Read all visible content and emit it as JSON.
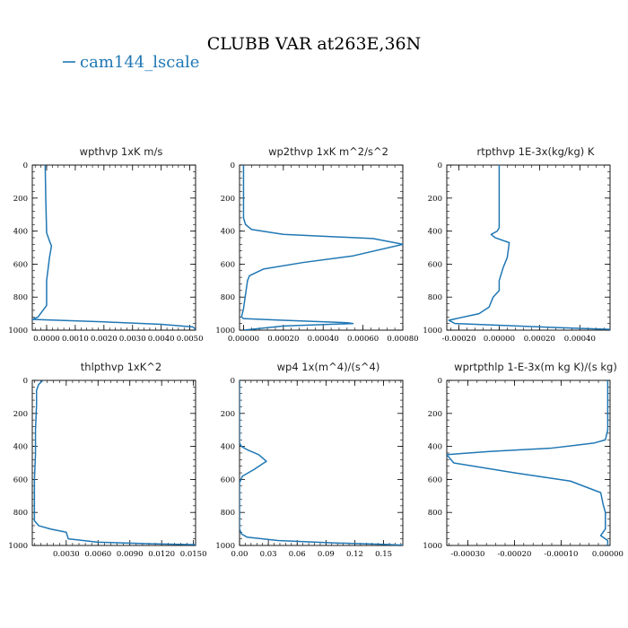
{
  "figure": {
    "title": "CLUBB VAR at263E,36N",
    "legend": {
      "label": "cam144_lscale",
      "color": "#1f77b4"
    }
  },
  "chart_data": [
    {
      "type": "line",
      "title": "wpthvp   1xK m/s",
      "ylim": [
        1000,
        0
      ],
      "xlim": [
        -0.0005,
        0.0052
      ],
      "xticks": [
        0.0,
        0.001,
        0.002,
        0.003,
        0.004,
        0.005
      ],
      "xtick_labels": [
        "0.0000",
        "0.0010",
        "0.0020",
        "0.0030",
        "0.0040",
        "0.0050"
      ],
      "yticks": [
        0,
        200,
        400,
        600,
        800,
        1000
      ],
      "ytick_labels": [
        "0",
        "200",
        "400",
        "600",
        "800",
        "1000"
      ],
      "series": [
        {
          "color": "#1f77b4",
          "x": [
            -5e-05,
            -4e-05,
            -3e-05,
            0.0,
            0.0001,
            0.00017,
            0.0001,
            5e-05,
            0.0,
            0.0,
            0.0,
            -0.0003,
            -0.0005,
            0.002,
            0.004,
            0.0051,
            0.0052
          ],
          "y": [
            0,
            100,
            200,
            410,
            460,
            490,
            560,
            630,
            700,
            800,
            850,
            920,
            935,
            950,
            965,
            980,
            995
          ]
        }
      ]
    },
    {
      "type": "line",
      "title": "wp2thvp   1xK m^2/s^2",
      "ylim": [
        1000,
        0
      ],
      "xlim": [
        -2e-05,
        0.0008
      ],
      "xticks": [
        0.0,
        0.0002,
        0.0004,
        0.0006,
        0.0008
      ],
      "xtick_labels": [
        "0.00000",
        "0.00020",
        "0.00040",
        "0.00060",
        "0.00080"
      ],
      "yticks": [
        0,
        200,
        400,
        600,
        800,
        1000
      ],
      "ytick_labels": [
        "0",
        "200",
        "400",
        "600",
        "800",
        "1000"
      ],
      "series": [
        {
          "color": "#1f77b4",
          "x": [
            0.0,
            0.0,
            1e-05,
            4e-05,
            0.0002,
            0.00065,
            0.0008,
            0.00055,
            0.0003,
            0.0001,
            3e-05,
            2e-05,
            0.0,
            -1e-05,
            0.0,
            0.0002,
            0.00052,
            0.00055,
            0.0002,
            0.0
          ],
          "y": [
            0,
            320,
            360,
            390,
            420,
            445,
            480,
            550,
            590,
            630,
            670,
            700,
            870,
            920,
            930,
            940,
            955,
            960,
            975,
            1000
          ]
        }
      ]
    },
    {
      "type": "line",
      "title": "rtpthvp   1E-3x(kg/kg) K",
      "ylim": [
        1000,
        0
      ],
      "xlim": [
        -0.00026,
        0.00055
      ],
      "xticks": [
        -0.0002,
        0.0,
        0.0002,
        0.0004
      ],
      "xtick_labels": [
        "-0.00020",
        "0.00000",
        "0.00020",
        "0.00040"
      ],
      "yticks": [
        0,
        200,
        400,
        600,
        800,
        1000
      ],
      "ytick_labels": [
        "0",
        "200",
        "400",
        "600",
        "800",
        "1000"
      ],
      "series": [
        {
          "color": "#1f77b4",
          "x": [
            0.0,
            0.0,
            -1e-05,
            -4e-05,
            -2e-05,
            5e-05,
            4e-05,
            2e-05,
            0.0,
            0.0,
            -3e-05,
            -5e-05,
            -0.0001,
            -0.00025,
            -0.00022,
            0.0003,
            0.00055
          ],
          "y": [
            0,
            380,
            400,
            420,
            440,
            470,
            560,
            620,
            700,
            760,
            800,
            860,
            900,
            940,
            960,
            985,
            995
          ]
        }
      ]
    },
    {
      "type": "line",
      "title": "thlpthvp   1xK^2",
      "ylim": [
        1000,
        0
      ],
      "xlim": [
        -0.0002,
        0.0152
      ],
      "xticks": [
        0.003,
        0.006,
        0.009,
        0.012,
        0.015
      ],
      "xtick_labels": [
        "0.0030",
        "0.0060",
        "0.0090",
        "0.0120",
        "0.0150"
      ],
      "yticks": [
        0,
        200,
        400,
        600,
        800,
        1000
      ],
      "ytick_labels": [
        "0",
        "200",
        "400",
        "600",
        "800",
        "1000"
      ],
      "series": [
        {
          "color": "#1f77b4",
          "x": [
            0.0008,
            0.0004,
            0.0002,
            0.0002,
            0.0001,
            0.0001,
            0.0,
            0.0,
            0.0004,
            0.0015,
            0.003,
            0.0032,
            0.006,
            0.011,
            0.0152
          ],
          "y": [
            0,
            25,
            60,
            150,
            300,
            450,
            600,
            850,
            880,
            900,
            920,
            960,
            980,
            990,
            995
          ]
        }
      ]
    },
    {
      "type": "line",
      "title": "wp4   1x(m^4)/(s^4)",
      "ylim": [
        1000,
        0
      ],
      "xlim": [
        0.0,
        0.17
      ],
      "xticks": [
        0.0,
        0.03,
        0.06,
        0.09,
        0.12,
        0.15
      ],
      "xtick_labels": [
        "0.00",
        "0.03",
        "0.06",
        "0.09",
        "0.12",
        "0.15"
      ],
      "yticks": [
        0,
        200,
        400,
        600,
        800,
        1000
      ],
      "ytick_labels": [
        "0",
        "200",
        "400",
        "600",
        "800",
        "1000"
      ],
      "series": [
        {
          "color": "#1f77b4",
          "x": [
            0.0,
            0.0,
            0.002,
            0.008,
            0.02,
            0.028,
            0.015,
            0.003,
            0.0,
            0.0,
            0.0,
            0.002,
            0.008,
            0.04,
            0.1,
            0.15,
            0.17
          ],
          "y": [
            0,
            380,
            400,
            420,
            450,
            490,
            540,
            580,
            620,
            850,
            900,
            930,
            950,
            970,
            985,
            993,
            998
          ]
        }
      ]
    },
    {
      "type": "line",
      "title": "wprtpthlp   1-E-3x(m kg K)/(s kg)",
      "ylim": [
        1000,
        0
      ],
      "xlim": [
        -0.000345,
        5e-06
      ],
      "xticks": [
        -0.0003,
        -0.0002,
        -0.0001,
        0.0
      ],
      "xtick_labels": [
        "-0.00030",
        "-0.00020",
        "-0.00010",
        "0.00000"
      ],
      "yticks": [
        0,
        200,
        400,
        600,
        800,
        1000
      ],
      "ytick_labels": [
        "0",
        "200",
        "400",
        "600",
        "800",
        "1000"
      ],
      "series": [
        {
          "color": "#1f77b4",
          "x": [
            0.0,
            0.0,
            -5e-06,
            -3e-05,
            -0.00012,
            -0.00025,
            -0.000345,
            -0.00033,
            -0.0002,
            -8e-05,
            -1.5e-05,
            -1e-05,
            -5e-06,
            -5e-06,
            -1.5e-05,
            0.0,
            0.0
          ],
          "y": [
            0,
            300,
            360,
            380,
            410,
            430,
            450,
            500,
            560,
            610,
            680,
            750,
            800,
            900,
            940,
            970,
            1000
          ]
        }
      ]
    }
  ]
}
